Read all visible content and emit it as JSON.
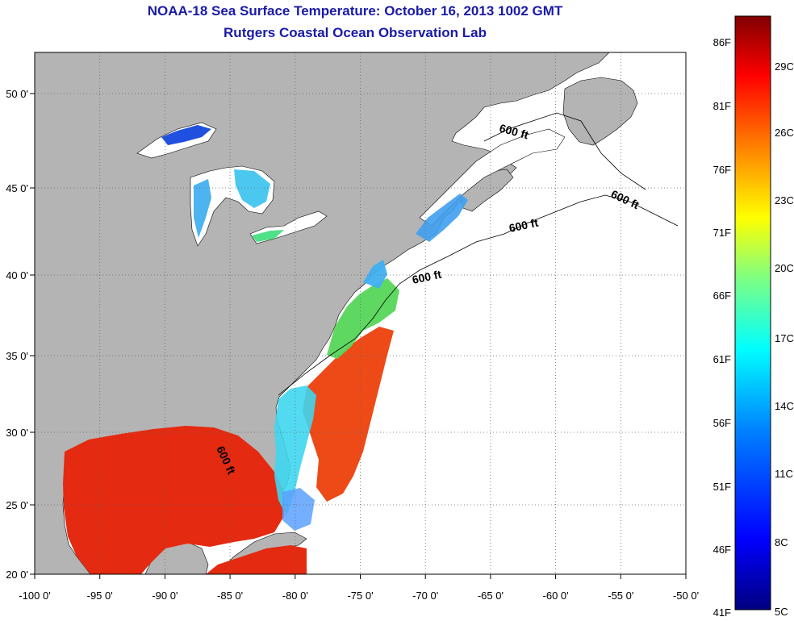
{
  "header": {
    "title": "NOAA-18 Sea Surface Temperature:  October 16, 2013 1002 GMT",
    "subtitle": "Rutgers Coastal Ocean Observation Lab"
  },
  "map": {
    "lon_ticks": [
      "-100 0'",
      "-95 0'",
      "-90 0'",
      "-85 0'",
      "-80 0'",
      "-75 0'",
      "-70 0'",
      "-65 0'",
      "-60 0'",
      "-55 0'",
      "-50 0'"
    ],
    "lat_ticks": [
      "50 0'",
      "45 0'",
      "40 0'",
      "35 0'",
      "30 0'",
      "25 0'",
      "20 0'"
    ],
    "isobath_labels": [
      "600 ft",
      "600 ft",
      "600 ft",
      "600 ft",
      "600 ft"
    ],
    "colors": {
      "land": "#b4b4b4",
      "warm": "#e42a10",
      "cool": "#3fd6f0",
      "cold": "#2040e0",
      "frame": "#000000"
    }
  },
  "colorbar": {
    "fahrenheit": [
      "86F",
      "81F",
      "76F",
      "71F",
      "66F",
      "61F",
      "56F",
      "51F",
      "46F",
      "41F"
    ],
    "celsius": [
      "29C",
      "26C",
      "23C",
      "20C",
      "17C",
      "14C",
      "11C",
      "8C",
      "5C"
    ],
    "gradient_stops": [
      "#000080",
      "#0000ff",
      "#0080ff",
      "#00ffff",
      "#80ff80",
      "#ffff00",
      "#ff8000",
      "#ff0000",
      "#800000"
    ]
  }
}
